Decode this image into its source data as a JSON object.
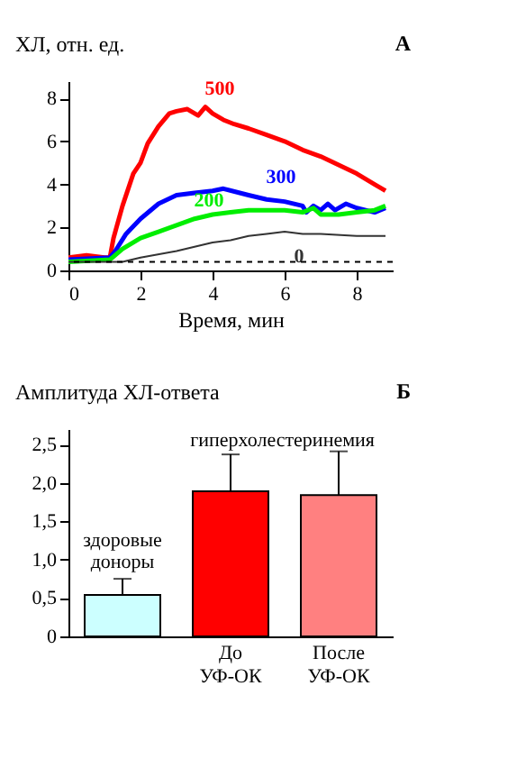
{
  "chart_data": [
    {
      "type": "line",
      "ylabel": "ХЛ, отн. ед.",
      "xlabel": "Время, мин",
      "annotations": [
        "А"
      ],
      "xlim": [
        0,
        9
      ],
      "ylim": [
        0,
        8.8
      ],
      "xticks": [
        0,
        2,
        4,
        6,
        8
      ],
      "yticks": [
        0,
        2,
        4,
        6,
        8
      ],
      "grid": false,
      "line_style": "solid",
      "ref_lines": [
        {
          "axis": "y",
          "value": 0.4,
          "line_style": "dashed",
          "color": "#000000"
        }
      ],
      "series": [
        {
          "name": "500",
          "color": "#ff0000",
          "x": [
            0,
            0.5,
            1,
            1.15,
            1.25,
            1.5,
            1.8,
            2,
            2.2,
            2.5,
            2.8,
            3,
            3.3,
            3.6,
            3.8,
            4,
            4.3,
            4.6,
            5,
            5.5,
            6,
            6.5,
            7,
            7.5,
            8,
            8.5,
            8.8
          ],
          "values": [
            0.6,
            0.7,
            0.6,
            0.6,
            1.5,
            3,
            4.5,
            5,
            5.9,
            6.7,
            7.3,
            7.4,
            7.5,
            7.2,
            7.6,
            7.3,
            7,
            6.8,
            6.6,
            6.3,
            6,
            5.6,
            5.3,
            4.9,
            4.5,
            4.0,
            3.7
          ]
        },
        {
          "name": "300",
          "color": "#0000ff",
          "x": [
            0,
            1.15,
            1.3,
            1.6,
            2,
            2.5,
            3,
            3.5,
            4,
            4.3,
            5,
            5.5,
            6,
            6.5,
            6.6,
            6.8,
            7,
            7.2,
            7.4,
            7.7,
            8,
            8.5,
            8.8
          ],
          "values": [
            0.5,
            0.6,
            0.9,
            1.7,
            2.4,
            3.1,
            3.5,
            3.6,
            3.7,
            3.8,
            3.5,
            3.3,
            3.2,
            3.0,
            2.7,
            3.0,
            2.8,
            3.1,
            2.8,
            3.1,
            2.9,
            2.7,
            2.9
          ]
        },
        {
          "name": "200",
          "color": "#00ee00",
          "x": [
            0,
            1.15,
            1.5,
            2,
            2.5,
            3,
            3.5,
            4,
            4.5,
            5,
            5.5,
            6,
            6.5,
            6.8,
            7,
            7.5,
            8,
            8.5,
            8.8
          ],
          "values": [
            0.4,
            0.5,
            1.0,
            1.5,
            1.8,
            2.1,
            2.4,
            2.6,
            2.7,
            2.8,
            2.8,
            2.8,
            2.7,
            2.9,
            2.6,
            2.6,
            2.7,
            2.8,
            3.0
          ]
        },
        {
          "name": "0",
          "color": "#333333",
          "x": [
            0,
            1.5,
            2,
            3,
            4,
            4.5,
            5,
            5.5,
            6,
            6.5,
            7,
            8,
            8.8
          ],
          "values": [
            0.4,
            0.4,
            0.6,
            0.9,
            1.3,
            1.4,
            1.6,
            1.7,
            1.8,
            1.7,
            1.7,
            1.6,
            1.6
          ]
        }
      ]
    },
    {
      "type": "bar",
      "ylabel": "Амплитуда ХЛ-ответа",
      "annotations": [
        "Б",
        "здоровые доноры",
        "гиперхолестеринемия"
      ],
      "categories": [
        null,
        "До УФ-ОК",
        "После УФ-ОК"
      ],
      "values": [
        0.54,
        1.89,
        1.84
      ],
      "errors": [
        0.21,
        0.48,
        0.57
      ],
      "colors": [
        "#ccffff",
        "#ff0000",
        "#ff8080"
      ],
      "ylim": [
        0,
        2.7
      ],
      "yticks": [
        0,
        {
          "value": 0.5,
          "label": "0,5"
        },
        {
          "value": 1.0,
          "label": "1,0"
        },
        {
          "value": 1.5,
          "label": "1,5"
        },
        {
          "value": 2.0,
          "label": "2,0"
        },
        {
          "value": 2.5,
          "label": "2,5"
        }
      ],
      "grid": false
    }
  ]
}
